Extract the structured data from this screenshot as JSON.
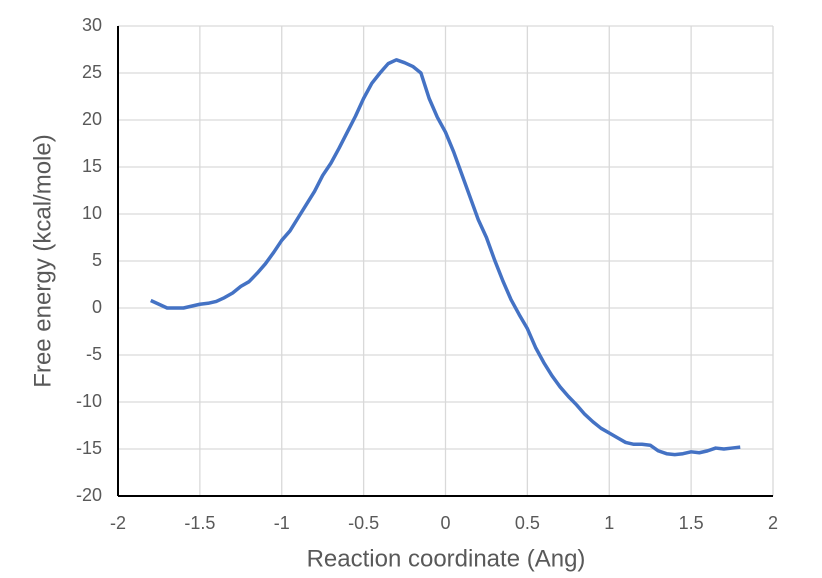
{
  "chart_data": {
    "type": "line",
    "x_label": "Reaction coordinate (Ang)",
    "y_label": "Free energy (kcal/mole)",
    "x": [
      -1.8,
      -1.75,
      -1.7,
      -1.65,
      -1.6,
      -1.55,
      -1.5,
      -1.45,
      -1.4,
      -1.35,
      -1.3,
      -1.25,
      -1.2,
      -1.15,
      -1.1,
      -1.05,
      -1.0,
      -0.95,
      -0.9,
      -0.85,
      -0.8,
      -0.75,
      -0.7,
      -0.65,
      -0.6,
      -0.55,
      -0.5,
      -0.45,
      -0.4,
      -0.35,
      -0.3,
      -0.25,
      -0.2,
      -0.15,
      -0.1,
      -0.05,
      0.0,
      0.05,
      0.1,
      0.15,
      0.2,
      0.25,
      0.3,
      0.35,
      0.4,
      0.45,
      0.5,
      0.55,
      0.6,
      0.65,
      0.7,
      0.75,
      0.8,
      0.85,
      0.9,
      0.95,
      1.0,
      1.05,
      1.1,
      1.15,
      1.2,
      1.25,
      1.3,
      1.35,
      1.4,
      1.45,
      1.5,
      1.55,
      1.6,
      1.65,
      1.7,
      1.75,
      1.8
    ],
    "series": [
      {
        "color": "#4472c4",
        "values": [
          0.8,
          0.4,
          0.0,
          0.0,
          0.0,
          0.2,
          0.4,
          0.5,
          0.7,
          1.1,
          1.6,
          2.3,
          2.8,
          3.7,
          4.7,
          5.9,
          7.2,
          8.2,
          9.6,
          11.0,
          12.4,
          14.1,
          15.4,
          17.0,
          18.7,
          20.4,
          22.3,
          23.9,
          25.0,
          26.0,
          26.4,
          26.1,
          25.7,
          25.0,
          22.3,
          20.3,
          18.7,
          16.6,
          14.2,
          11.8,
          9.4,
          7.5,
          5.1,
          2.9,
          0.9,
          -0.7,
          -2.2,
          -4.2,
          -5.8,
          -7.2,
          -8.4,
          -9.4,
          -10.3,
          -11.3,
          -12.1,
          -12.8,
          -13.3,
          -13.8,
          -14.3,
          -14.5,
          -14.5,
          -14.6,
          -15.2,
          -15.5,
          -15.6,
          -15.5,
          -15.3,
          -15.4,
          -15.2,
          -14.9,
          -15.0,
          -14.9,
          -14.8
        ]
      }
    ],
    "xlim": [
      -2,
      2
    ],
    "xticks": [
      -2,
      -1.5,
      -1,
      -0.5,
      0,
      0.5,
      1,
      1.5,
      2
    ],
    "ylim": [
      -20,
      30
    ],
    "yticks": [
      -20,
      -15,
      -10,
      -5,
      0,
      5,
      10,
      15,
      20,
      25,
      30
    ],
    "grid": true
  }
}
